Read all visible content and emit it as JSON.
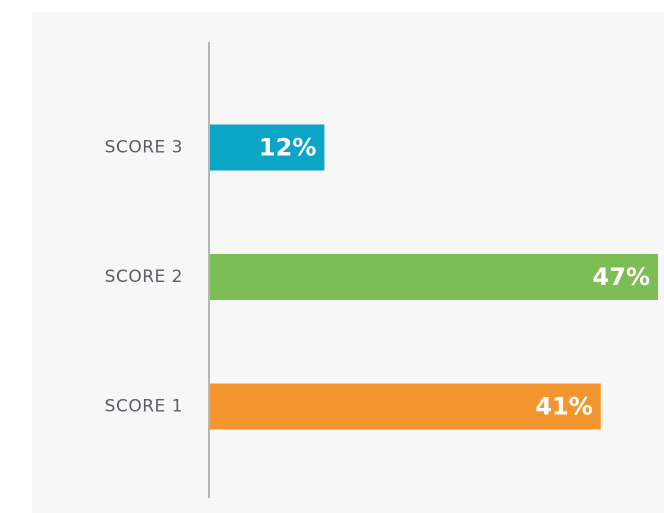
{
  "chart_data": {
    "type": "hbar",
    "categories": [
      "SCORE 3",
      "SCORE 2",
      "SCORE 1"
    ],
    "values": [
      12,
      47,
      41
    ],
    "value_labels": [
      "12%",
      "47%",
      "41%"
    ],
    "colors": [
      "#0aa5c7",
      "#7dbd55",
      "#f39630"
    ],
    "xlim": [
      0,
      47
    ]
  }
}
